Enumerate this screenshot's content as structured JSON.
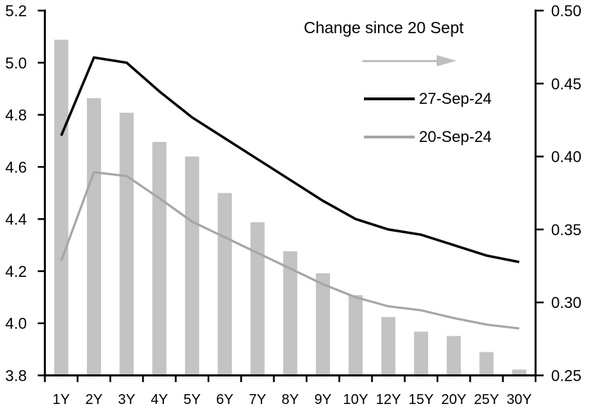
{
  "chart_data": {
    "type": "combo",
    "title": "",
    "categories": [
      "1Y",
      "2Y",
      "3Y",
      "4Y",
      "5Y",
      "6Y",
      "7Y",
      "8Y",
      "9Y",
      "10Y",
      "12Y",
      "15Y",
      "20Y",
      "25Y",
      "30Y"
    ],
    "series": [
      {
        "name": "Change since 20 Sept",
        "type": "bar",
        "axis": "right",
        "color": "#c3c3c3",
        "values": [
          0.48,
          0.44,
          0.43,
          0.41,
          0.4,
          0.375,
          0.355,
          0.335,
          0.32,
          0.305,
          0.29,
          0.28,
          0.277,
          0.266,
          0.254
        ]
      },
      {
        "name": "27-Sep-24",
        "type": "line",
        "axis": "left",
        "color": "#000000",
        "values": [
          4.72,
          5.02,
          5.0,
          4.89,
          4.79,
          4.71,
          4.63,
          4.55,
          4.47,
          4.4,
          4.36,
          4.34,
          4.3,
          4.26,
          4.235
        ]
      },
      {
        "name": "20-Sep-24",
        "type": "line",
        "axis": "left",
        "color": "#a6a6a6",
        "values": [
          4.24,
          4.58,
          4.565,
          4.48,
          4.39,
          4.33,
          4.27,
          4.21,
          4.15,
          4.1,
          4.065,
          4.05,
          4.02,
          3.995,
          3.98
        ]
      }
    ],
    "left_axis": {
      "min": 3.8,
      "max": 5.2,
      "step": 0.2,
      "tick_labels": [
        "5.2",
        "5.0",
        "4.8",
        "4.6",
        "4.4",
        "4.2",
        "4.0",
        "3.8"
      ]
    },
    "right_axis": {
      "min": 0.25,
      "max": 0.5,
      "step": 0.05,
      "tick_labels": [
        "0.50",
        "0.45",
        "0.40",
        "0.35",
        "0.30",
        "0.25"
      ]
    },
    "legend": {
      "bar_series_label": "Change since 20 Sept",
      "arrow_color": "#bfbfbf",
      "line1_label": "27-Sep-24",
      "line2_label": "20-Sep-24"
    },
    "layout": {
      "grid": false,
      "legend_position": "top-right-inside",
      "axis_color": "#000000",
      "background": "#ffffff"
    }
  }
}
